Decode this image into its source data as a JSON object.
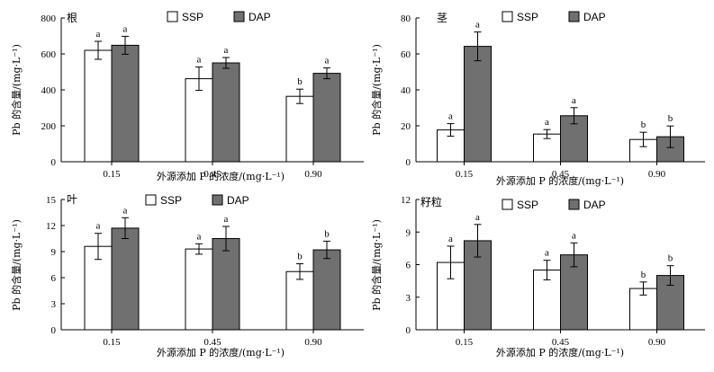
{
  "chart_data": [
    {
      "type": "bar",
      "title": "根",
      "categories": [
        "0.15",
        "0.45",
        "0.90"
      ],
      "series": [
        {
          "name": "SSP",
          "values": [
            620,
            462,
            364
          ],
          "errors": [
            50,
            65,
            40
          ],
          "labels": [
            "a",
            "a",
            "b"
          ]
        },
        {
          "name": "DAP",
          "values": [
            648,
            550,
            492
          ],
          "errors": [
            50,
            30,
            30
          ],
          "labels": [
            "a",
            "a",
            "a"
          ]
        }
      ],
      "ylim": [
        0,
        800
      ],
      "yticks": [
        "0",
        "200",
        "400",
        "600",
        "800"
      ],
      "ylabel": "Pb 的含量/(mg·L⁻¹)",
      "xlabel": "外源添加 P 的浓度/(mg·L⁻¹)"
    },
    {
      "type": "bar",
      "title": "茎",
      "categories": [
        "0.15",
        "0.45",
        "0.90"
      ],
      "series": [
        {
          "name": "SSP",
          "values": [
            17.7,
            15.4,
            12.4
          ],
          "errors": [
            3.5,
            2.5,
            4
          ],
          "labels": [
            "a",
            "a",
            "b"
          ]
        },
        {
          "name": "DAP",
          "values": [
            64.2,
            25.6,
            13.9
          ],
          "errors": [
            8,
            4.5,
            6
          ],
          "labels": [
            "a",
            "a",
            "b"
          ]
        }
      ],
      "ylim": [
        0,
        80
      ],
      "yticks": [
        "0",
        "20",
        "40",
        "60",
        "80"
      ],
      "ylabel": "Pb 的含量/(mg·L⁻¹)",
      "xlabel": "外源添加 P 的浓度/(mg·L⁻¹)"
    },
    {
      "type": "bar",
      "title": "叶",
      "categories": [
        "0.15",
        "0.45",
        "0.90"
      ],
      "series": [
        {
          "name": "SSP",
          "values": [
            9.6,
            9.3,
            6.7
          ],
          "errors": [
            1.5,
            0.6,
            0.9
          ],
          "labels": [
            "a",
            "a",
            "b"
          ]
        },
        {
          "name": "DAP",
          "values": [
            11.7,
            10.5,
            9.2
          ],
          "errors": [
            1.2,
            1.4,
            1.0
          ],
          "labels": [
            "a",
            "a",
            "b"
          ]
        }
      ],
      "ylim": [
        0,
        15
      ],
      "yticks": [
        "0",
        "3",
        "6",
        "9",
        "12",
        "15"
      ],
      "ylabel": "Pb 的含量/(mg·L⁻¹)",
      "xlabel": "外源添加 P 的浓度/(mg·L⁻¹)"
    },
    {
      "type": "bar",
      "title": "籽粒",
      "categories": [
        "0.15",
        "0.45",
        "0.90"
      ],
      "series": [
        {
          "name": "SSP",
          "values": [
            6.2,
            5.5,
            3.8
          ],
          "errors": [
            1.5,
            0.9,
            0.6
          ],
          "labels": [
            "a",
            "a",
            "b"
          ]
        },
        {
          "name": "DAP",
          "values": [
            8.2,
            6.9,
            5.0
          ],
          "errors": [
            1.5,
            1.1,
            0.9
          ],
          "labels": [
            "a",
            "a",
            "b"
          ]
        }
      ],
      "ylim": [
        0,
        12
      ],
      "yticks": [
        "0",
        "3",
        "6",
        "9",
        "12"
      ],
      "ylabel": "Pb 的含量/(mg·L⁻¹)",
      "xlabel": "外源添加 P 的浓度/(mg·L⁻¹)"
    }
  ]
}
